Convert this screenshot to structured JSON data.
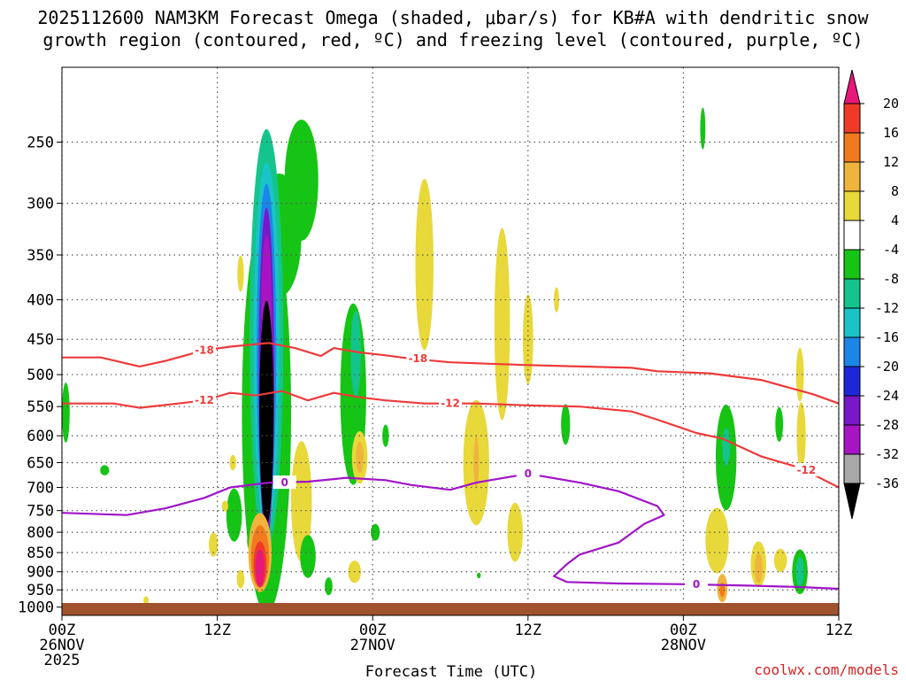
{
  "chart_data": {
    "type": "heatmap",
    "title_line1": "2025112600 NAM3KM Forecast Omega (shaded, μbar/s) for KB#A with dendritic snow",
    "title_line2": "growth region (contoured, red, ºC) and freezing level (contoured, purple, ºC)",
    "xlabel": "Forecast Time (UTC)",
    "credit": "coolwx.com/models",
    "x_ticks": [
      {
        "hour": 0,
        "l1": "00Z",
        "l2": "26NOV",
        "l3": "2025"
      },
      {
        "hour": 12,
        "l1": "12Z",
        "l2": "",
        "l3": ""
      },
      {
        "hour": 24,
        "l1": "00Z",
        "l2": "27NOV",
        "l3": ""
      },
      {
        "hour": 36,
        "l1": "12Z",
        "l2": "",
        "l3": ""
      },
      {
        "hour": 48,
        "l1": "00Z",
        "l2": "28NOV",
        "l3": ""
      },
      {
        "hour": 60,
        "l1": "12Z",
        "l2": "",
        "l3": ""
      }
    ],
    "x_range_hours": [
      0,
      60
    ],
    "y_ticks_mb": [
      250,
      300,
      350,
      400,
      450,
      500,
      550,
      600,
      650,
      700,
      750,
      800,
      850,
      900,
      950,
      1000
    ],
    "y_range_mb": [
      200,
      1025
    ],
    "y_scale": "log",
    "grid": true,
    "colorbar": {
      "labels": [
        "20",
        "16",
        "12",
        "8",
        "4",
        "-4",
        "-8",
        "-12",
        "-16",
        "-20",
        "-24",
        "-28",
        "-32",
        "-36"
      ],
      "colors": [
        "#e8187a",
        "#f03a28",
        "#f07a1e",
        "#f0b43c",
        "#e8d83a",
        "#ffffff",
        "#16c416",
        "#14c48c",
        "#18c4c8",
        "#1c86e8",
        "#1c28d8",
        "#7818c8",
        "#a814c4",
        "#a8a8a8",
        "#000000"
      ]
    },
    "contours": {
      "dgz_minus18_label": "-18",
      "dgz_minus12_label": "-12",
      "freezing_label": "0",
      "dgz_color": "#ee3a3a",
      "freezing_color": "#a014c8",
      "dgz_minus18": [
        [
          0,
          475
        ],
        [
          3,
          475
        ],
        [
          6,
          488
        ],
        [
          8,
          480
        ],
        [
          11,
          465
        ],
        [
          13,
          460
        ],
        [
          16,
          455
        ],
        [
          18,
          462
        ],
        [
          20,
          473
        ],
        [
          21,
          462
        ],
        [
          23,
          468
        ],
        [
          25,
          472
        ],
        [
          27,
          477
        ],
        [
          30,
          482
        ],
        [
          33,
          484
        ],
        [
          36,
          486
        ],
        [
          40,
          488
        ],
        [
          44,
          490
        ],
        [
          46,
          495
        ],
        [
          50,
          498
        ],
        [
          54,
          508
        ],
        [
          58,
          530
        ],
        [
          60,
          545
        ]
      ],
      "dgz_minus12": [
        [
          0,
          545
        ],
        [
          4,
          545
        ],
        [
          6,
          552
        ],
        [
          9,
          545
        ],
        [
          11,
          540
        ],
        [
          13,
          528
        ],
        [
          15,
          532
        ],
        [
          17,
          525
        ],
        [
          19,
          540
        ],
        [
          21,
          528
        ],
        [
          23,
          535
        ],
        [
          25,
          540
        ],
        [
          28,
          545
        ],
        [
          32,
          545
        ],
        [
          36,
          548
        ],
        [
          40,
          550
        ],
        [
          44,
          558
        ],
        [
          46,
          572
        ],
        [
          49,
          595
        ],
        [
          51,
          605
        ],
        [
          54,
          638
        ],
        [
          57,
          660
        ],
        [
          60,
          700
        ]
      ],
      "freezing_0": [
        [
          0,
          755
        ],
        [
          5,
          760
        ],
        [
          8,
          745
        ],
        [
          11,
          722
        ],
        [
          13,
          700
        ],
        [
          16,
          690
        ],
        [
          19,
          688
        ],
        [
          22,
          680
        ],
        [
          25,
          685
        ],
        [
          27,
          695
        ],
        [
          30,
          705
        ],
        [
          32,
          690
        ],
        [
          36,
          672
        ],
        [
          40,
          690
        ],
        [
          43,
          708
        ],
        [
          46,
          740
        ],
        [
          46.5,
          760
        ],
        [
          45,
          780
        ],
        [
          43,
          825
        ],
        [
          40,
          855
        ],
        [
          39,
          880
        ],
        [
          38,
          912
        ],
        [
          39,
          928
        ],
        [
          43,
          932
        ],
        [
          48,
          934
        ],
        [
          53,
          938
        ],
        [
          57,
          942
        ],
        [
          60,
          947
        ]
      ]
    },
    "omega_regions": [
      {
        "c": "#16c416",
        "h": 15.8,
        "p": 560,
        "rx": 1.9,
        "ry": 300
      },
      {
        "c": "#16c416",
        "h": 16.8,
        "p": 330,
        "rx": 1.7,
        "ry": 60
      },
      {
        "c": "#16c416",
        "h": 18.5,
        "p": 280,
        "rx": 1.3,
        "ry": 50
      },
      {
        "c": "#14c48c",
        "h": 15.8,
        "p": 450,
        "rx": 1.3,
        "ry": 250
      },
      {
        "c": "#18c4c8",
        "h": 15.8,
        "p": 460,
        "rx": 1.0,
        "ry": 230
      },
      {
        "c": "#1c86e8",
        "h": 15.8,
        "p": 470,
        "rx": 0.75,
        "ry": 220
      },
      {
        "c": "#7818c8",
        "h": 15.8,
        "p": 500,
        "rx": 0.6,
        "ry": 230
      },
      {
        "c": "#a814c4",
        "h": 15.8,
        "p": 420,
        "rx": 0.4,
        "ry": 100
      },
      {
        "c": "#000000",
        "h": 15.8,
        "p": 560,
        "rx": 0.55,
        "ry": 180
      },
      {
        "c": "#16c416",
        "h": 15.1,
        "p": 820,
        "rx": 0.8,
        "ry": 40
      },
      {
        "c": "#f0b43c",
        "h": 15.3,
        "p": 850,
        "rx": 0.9,
        "ry": 100
      },
      {
        "c": "#f07a1e",
        "h": 15.3,
        "p": 860,
        "rx": 0.7,
        "ry": 80
      },
      {
        "c": "#f03a28",
        "h": 15.3,
        "p": 880,
        "rx": 0.5,
        "ry": 60
      },
      {
        "c": "#e8187a",
        "h": 15.3,
        "p": 890,
        "rx": 0.35,
        "ry": 50
      },
      {
        "c": "#16c416",
        "h": 13.3,
        "p": 760,
        "rx": 0.6,
        "ry": 60
      },
      {
        "c": "#16c416",
        "h": 0.3,
        "p": 560,
        "rx": 0.3,
        "ry": 50
      },
      {
        "c": "#16c416",
        "h": 3.3,
        "p": 665,
        "rx": 0.35,
        "ry": 10
      },
      {
        "c": "#e8d83a",
        "h": 11.7,
        "p": 830,
        "rx": 0.35,
        "ry": 30
      },
      {
        "c": "#e8d83a",
        "h": 13.2,
        "p": 650,
        "rx": 0.25,
        "ry": 15
      },
      {
        "c": "#e8d83a",
        "h": 12.6,
        "p": 740,
        "rx": 0.25,
        "ry": 12
      },
      {
        "c": "#e8d83a",
        "h": 6.5,
        "p": 980,
        "rx": 0.2,
        "ry": 12
      },
      {
        "c": "#e8d83a",
        "h": 13.8,
        "p": 920,
        "rx": 0.3,
        "ry": 25
      },
      {
        "c": "#e8d83a",
        "h": 13.8,
        "p": 370,
        "rx": 0.25,
        "ry": 20
      },
      {
        "c": "#e8d83a",
        "h": 18.5,
        "p": 730,
        "rx": 0.8,
        "ry": 130
      },
      {
        "c": "#16c416",
        "h": 19.0,
        "p": 860,
        "rx": 0.6,
        "ry": 55
      },
      {
        "c": "#16c416",
        "h": 20.6,
        "p": 940,
        "rx": 0.3,
        "ry": 25
      },
      {
        "c": "#16c416",
        "h": 22.5,
        "p": 530,
        "rx": 1.0,
        "ry": 140
      },
      {
        "c": "#14c48c",
        "h": 22.7,
        "p": 470,
        "rx": 0.4,
        "ry": 60
      },
      {
        "c": "#e8d83a",
        "h": 23.0,
        "p": 640,
        "rx": 0.6,
        "ry": 50
      },
      {
        "c": "#f0b43c",
        "h": 23.0,
        "p": 640,
        "rx": 0.3,
        "ry": 30
      },
      {
        "c": "#16c416",
        "h": 24.2,
        "p": 800,
        "rx": 0.35,
        "ry": 20
      },
      {
        "c": "#e8d83a",
        "h": 22.6,
        "p": 900,
        "rx": 0.5,
        "ry": 30
      },
      {
        "c": "#16c416",
        "h": 25.0,
        "p": 600,
        "rx": 0.25,
        "ry": 20
      },
      {
        "c": "#e8d83a",
        "h": 28.0,
        "p": 360,
        "rx": 0.7,
        "ry": 90
      },
      {
        "c": "#e8d83a",
        "h": 32.0,
        "p": 650,
        "rx": 1.0,
        "ry": 120
      },
      {
        "c": "#f0b43c",
        "h": 32.0,
        "p": 650,
        "rx": 0.2,
        "ry": 50
      },
      {
        "c": "#e8d83a",
        "h": 34.0,
        "p": 430,
        "rx": 0.6,
        "ry": 120
      },
      {
        "c": "#e8d83a",
        "h": 35.0,
        "p": 800,
        "rx": 0.6,
        "ry": 70
      },
      {
        "c": "#e8d83a",
        "h": 36.0,
        "p": 450,
        "rx": 0.4,
        "ry": 60
      },
      {
        "c": "#e8d83a",
        "h": 38.2,
        "p": 400,
        "rx": 0.2,
        "ry": 15
      },
      {
        "c": "#16c416",
        "h": 38.9,
        "p": 580,
        "rx": 0.35,
        "ry": 35
      },
      {
        "c": "#16c416",
        "h": 32.2,
        "p": 910,
        "rx": 0.15,
        "ry": 8
      },
      {
        "c": "#16c416",
        "h": 49.5,
        "p": 240,
        "rx": 0.2,
        "ry": 15
      },
      {
        "c": "#16c416",
        "h": 51.3,
        "p": 640,
        "rx": 0.8,
        "ry": 100
      },
      {
        "c": "#14c48c",
        "h": 51.3,
        "p": 620,
        "rx": 0.3,
        "ry": 35
      },
      {
        "c": "#e8d83a",
        "h": 50.6,
        "p": 820,
        "rx": 0.9,
        "ry": 80
      },
      {
        "c": "#f0b43c",
        "h": 51.0,
        "p": 945,
        "rx": 0.4,
        "ry": 40
      },
      {
        "c": "#f07a1e",
        "h": 51.0,
        "p": 950,
        "rx": 0.2,
        "ry": 20
      },
      {
        "c": "#e8d83a",
        "h": 53.8,
        "p": 880,
        "rx": 0.6,
        "ry": 60
      },
      {
        "c": "#f0b43c",
        "h": 53.8,
        "p": 890,
        "rx": 0.3,
        "ry": 40
      },
      {
        "c": "#16c416",
        "h": 55.4,
        "p": 580,
        "rx": 0.3,
        "ry": 30
      },
      {
        "c": "#e8d83a",
        "h": 57.0,
        "p": 500,
        "rx": 0.3,
        "ry": 40
      },
      {
        "c": "#e8d83a",
        "h": 57.1,
        "p": 600,
        "rx": 0.35,
        "ry": 60
      },
      {
        "c": "#16c416",
        "h": 57.0,
        "p": 900,
        "rx": 0.6,
        "ry": 60
      },
      {
        "c": "#14c48c",
        "h": 57.0,
        "p": 900,
        "rx": 0.3,
        "ry": 40
      },
      {
        "c": "#e8d83a",
        "h": 55.5,
        "p": 870,
        "rx": 0.5,
        "ry": 30
      }
    ]
  }
}
